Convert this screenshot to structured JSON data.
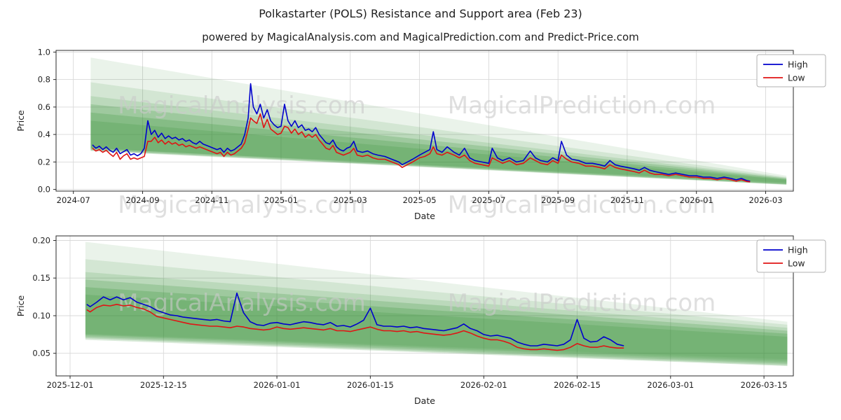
{
  "title": "Polkastarter (POLS) Resistance and Support area (Feb 23)",
  "subtitle": "powered by MagicalAnalysis.com and MagicalPrediction.com and Predict-Price.com",
  "watermarks": [
    "MagicalAnalysis.com",
    "MagicalPrediction.com"
  ],
  "colors": {
    "high": "#0000cd",
    "low": "#e01414",
    "band": "#2e8b2e",
    "grid": "#d9d9d9",
    "axis": "#2b2b2b",
    "text": "#1f1f1f",
    "watermark": "#c9c9c9",
    "legend_border": "#b0b0b0"
  },
  "chart_data": [
    {
      "type": "line",
      "panel": "top",
      "xlabel": "Date",
      "ylabel": "Price",
      "x_unit": "months since 2024-07-01",
      "grid": true,
      "legend_position": "upper right",
      "xlim": [
        -0.5,
        20.8
      ],
      "ylim": [
        -0.012,
        1.012
      ],
      "xticks": [
        0,
        2,
        4,
        6,
        8,
        10,
        12,
        14,
        16,
        18,
        20
      ],
      "xtick_labels": [
        "2024-07",
        "2024-09",
        "2024-11",
        "2025-01",
        "2025-03",
        "2025-05",
        "2025-07",
        "2025-09",
        "2025-11",
        "2026-01",
        "2026-03"
      ],
      "yticks": [
        0.0,
        0.2,
        0.4,
        0.6,
        0.8,
        1.0
      ],
      "ytick_labels": [
        "0.0",
        "0.2",
        "0.4",
        "0.6",
        "0.8",
        "1.0"
      ],
      "x": [
        0.55,
        0.65,
        0.75,
        0.85,
        0.95,
        1.05,
        1.15,
        1.25,
        1.35,
        1.45,
        1.55,
        1.65,
        1.75,
        1.85,
        1.95,
        2.05,
        2.15,
        2.25,
        2.35,
        2.45,
        2.55,
        2.65,
        2.75,
        2.85,
        2.95,
        3.05,
        3.15,
        3.25,
        3.35,
        3.45,
        3.55,
        3.65,
        3.75,
        3.85,
        3.95,
        4.05,
        4.15,
        4.25,
        4.35,
        4.45,
        4.55,
        4.65,
        4.75,
        4.85,
        4.95,
        5.05,
        5.12,
        5.2,
        5.3,
        5.4,
        5.5,
        5.6,
        5.7,
        5.8,
        5.9,
        6.0,
        6.1,
        6.2,
        6.3,
        6.4,
        6.5,
        6.6,
        6.7,
        6.8,
        6.9,
        7.0,
        7.1,
        7.2,
        7.3,
        7.4,
        7.5,
        7.6,
        7.7,
        7.8,
        7.9,
        8.0,
        8.1,
        8.2,
        8.35,
        8.5,
        8.65,
        8.8,
        9.0,
        9.2,
        9.4,
        9.5,
        9.65,
        9.8,
        10.0,
        10.15,
        10.3,
        10.4,
        10.5,
        10.65,
        10.8,
        11.0,
        11.15,
        11.3,
        11.45,
        11.6,
        11.8,
        12.0,
        12.1,
        12.25,
        12.4,
        12.6,
        12.8,
        13.0,
        13.2,
        13.35,
        13.5,
        13.7,
        13.85,
        14.0,
        14.1,
        14.25,
        14.4,
        14.6,
        14.8,
        15.0,
        15.2,
        15.35,
        15.5,
        15.65,
        15.8,
        16.0,
        16.2,
        16.35,
        16.5,
        16.65,
        16.8,
        17.0,
        17.2,
        17.4,
        17.6,
        17.8,
        18.0,
        18.2,
        18.4,
        18.6,
        18.8,
        19.0,
        19.15,
        19.3,
        19.45,
        19.55
      ],
      "series": [
        {
          "name": "High",
          "color": "high",
          "values": [
            0.325,
            0.3,
            0.315,
            0.29,
            0.31,
            0.285,
            0.27,
            0.3,
            0.26,
            0.275,
            0.29,
            0.25,
            0.26,
            0.245,
            0.26,
            0.3,
            0.5,
            0.4,
            0.43,
            0.38,
            0.41,
            0.37,
            0.39,
            0.37,
            0.38,
            0.36,
            0.37,
            0.35,
            0.36,
            0.34,
            0.33,
            0.35,
            0.33,
            0.32,
            0.31,
            0.3,
            0.29,
            0.3,
            0.27,
            0.3,
            0.28,
            0.29,
            0.31,
            0.33,
            0.4,
            0.52,
            0.77,
            0.6,
            0.55,
            0.62,
            0.52,
            0.58,
            0.5,
            0.47,
            0.45,
            0.46,
            0.62,
            0.5,
            0.46,
            0.5,
            0.45,
            0.47,
            0.43,
            0.44,
            0.42,
            0.45,
            0.4,
            0.37,
            0.34,
            0.33,
            0.36,
            0.31,
            0.29,
            0.28,
            0.3,
            0.31,
            0.35,
            0.28,
            0.27,
            0.28,
            0.26,
            0.25,
            0.24,
            0.22,
            0.2,
            0.18,
            0.2,
            0.22,
            0.25,
            0.27,
            0.29,
            0.42,
            0.29,
            0.27,
            0.31,
            0.27,
            0.25,
            0.3,
            0.23,
            0.21,
            0.2,
            0.19,
            0.3,
            0.23,
            0.21,
            0.23,
            0.2,
            0.21,
            0.28,
            0.23,
            0.21,
            0.2,
            0.23,
            0.21,
            0.35,
            0.25,
            0.22,
            0.21,
            0.19,
            0.19,
            0.18,
            0.17,
            0.21,
            0.18,
            0.17,
            0.16,
            0.15,
            0.14,
            0.16,
            0.14,
            0.13,
            0.12,
            0.11,
            0.12,
            0.11,
            0.1,
            0.1,
            0.09,
            0.09,
            0.08,
            0.09,
            0.08,
            0.07,
            0.08,
            0.065,
            0.06
          ]
        },
        {
          "name": "Low",
          "color": "low",
          "values": [
            0.3,
            0.28,
            0.29,
            0.27,
            0.285,
            0.26,
            0.24,
            0.27,
            0.22,
            0.245,
            0.26,
            0.22,
            0.23,
            0.22,
            0.23,
            0.24,
            0.35,
            0.35,
            0.38,
            0.34,
            0.36,
            0.33,
            0.35,
            0.33,
            0.34,
            0.32,
            0.33,
            0.31,
            0.32,
            0.31,
            0.3,
            0.31,
            0.3,
            0.29,
            0.28,
            0.27,
            0.26,
            0.27,
            0.24,
            0.27,
            0.25,
            0.26,
            0.28,
            0.3,
            0.34,
            0.44,
            0.52,
            0.5,
            0.48,
            0.55,
            0.45,
            0.51,
            0.44,
            0.42,
            0.4,
            0.41,
            0.46,
            0.45,
            0.41,
            0.44,
            0.4,
            0.42,
            0.38,
            0.4,
            0.38,
            0.4,
            0.36,
            0.33,
            0.3,
            0.29,
            0.32,
            0.27,
            0.26,
            0.25,
            0.26,
            0.27,
            0.3,
            0.25,
            0.24,
            0.25,
            0.23,
            0.22,
            0.22,
            0.2,
            0.18,
            0.16,
            0.18,
            0.2,
            0.23,
            0.24,
            0.26,
            0.31,
            0.26,
            0.25,
            0.27,
            0.25,
            0.23,
            0.25,
            0.21,
            0.19,
            0.18,
            0.17,
            0.23,
            0.21,
            0.19,
            0.21,
            0.18,
            0.19,
            0.23,
            0.21,
            0.19,
            0.18,
            0.21,
            0.19,
            0.25,
            0.22,
            0.2,
            0.19,
            0.17,
            0.17,
            0.16,
            0.15,
            0.18,
            0.16,
            0.15,
            0.14,
            0.13,
            0.12,
            0.14,
            0.12,
            0.11,
            0.11,
            0.1,
            0.11,
            0.1,
            0.09,
            0.09,
            0.08,
            0.08,
            0.07,
            0.08,
            0.07,
            0.06,
            0.07,
            0.058,
            0.055
          ]
        }
      ],
      "bands": [
        {
          "x0": 0.5,
          "top0": 0.96,
          "bot0": 0.3,
          "x1": 20.6,
          "top1": 0.1,
          "bot1": 0.05,
          "opacity": 0.1
        },
        {
          "x0": 0.5,
          "top0": 0.78,
          "bot0": 0.3,
          "x1": 20.6,
          "top1": 0.09,
          "bot1": 0.045,
          "opacity": 0.12
        },
        {
          "x0": 0.5,
          "top0": 0.68,
          "bot0": 0.3,
          "x1": 20.6,
          "top1": 0.085,
          "bot1": 0.04,
          "opacity": 0.14
        },
        {
          "x0": 0.5,
          "top0": 0.62,
          "bot0": 0.29,
          "x1": 20.6,
          "top1": 0.08,
          "bot1": 0.038,
          "opacity": 0.2
        },
        {
          "x0": 0.5,
          "top0": 0.56,
          "bot0": 0.285,
          "x1": 20.6,
          "top1": 0.075,
          "bot1": 0.036,
          "opacity": 0.22
        },
        {
          "x0": 0.5,
          "top0": 0.5,
          "bot0": 0.28,
          "x1": 20.6,
          "top1": 0.07,
          "bot1": 0.034,
          "opacity": 0.18
        }
      ]
    },
    {
      "type": "line",
      "panel": "bottom",
      "xlabel": "Date",
      "ylabel": "Price",
      "x_unit": "days since 2025-12-01",
      "grid": true,
      "legend_position": "upper right",
      "xlim": [
        -2.1,
        108.4
      ],
      "ylim": [
        0.02,
        0.206
      ],
      "xticks": [
        0,
        14,
        31,
        45,
        62,
        76,
        90,
        104
      ],
      "xtick_labels": [
        "2025-12-01",
        "2025-12-15",
        "2026-01-01",
        "2026-01-15",
        "2026-02-01",
        "2026-02-15",
        "2026-03-01",
        "2026-03-15"
      ],
      "yticks": [
        0.05,
        0.1,
        0.15,
        0.2
      ],
      "ytick_labels": [
        "0.05",
        "0.10",
        "0.15",
        "0.20"
      ],
      "x": [
        2.5,
        3,
        4,
        5,
        6,
        7,
        8,
        9,
        10,
        11,
        12,
        13,
        14,
        15,
        16,
        17,
        18,
        19,
        20,
        21,
        22,
        23,
        24,
        25,
        26,
        27,
        28,
        29,
        30,
        31,
        32,
        33,
        34,
        35,
        36,
        37,
        38,
        39,
        40,
        41,
        42,
        43,
        44,
        45,
        46,
        47,
        48,
        49,
        50,
        51,
        52,
        53,
        54,
        55,
        56,
        57,
        58,
        59,
        60,
        61,
        62,
        63,
        64,
        65,
        66,
        67,
        68,
        69,
        70,
        71,
        72,
        73,
        74,
        75,
        76,
        77,
        78,
        79,
        80,
        81,
        82,
        83
      ],
      "series": [
        {
          "name": "High",
          "color": "high",
          "values": [
            0.115,
            0.112,
            0.118,
            0.125,
            0.121,
            0.125,
            0.121,
            0.124,
            0.118,
            0.115,
            0.112,
            0.107,
            0.104,
            0.101,
            0.1,
            0.098,
            0.097,
            0.096,
            0.095,
            0.094,
            0.095,
            0.093,
            0.092,
            0.13,
            0.104,
            0.092,
            0.088,
            0.087,
            0.09,
            0.091,
            0.089,
            0.088,
            0.09,
            0.092,
            0.091,
            0.089,
            0.088,
            0.091,
            0.086,
            0.087,
            0.085,
            0.089,
            0.094,
            0.11,
            0.088,
            0.086,
            0.086,
            0.085,
            0.086,
            0.084,
            0.085,
            0.083,
            0.082,
            0.081,
            0.08,
            0.082,
            0.084,
            0.089,
            0.083,
            0.08,
            0.075,
            0.073,
            0.074,
            0.072,
            0.07,
            0.065,
            0.062,
            0.06,
            0.06,
            0.062,
            0.061,
            0.06,
            0.062,
            0.068,
            0.095,
            0.07,
            0.065,
            0.066,
            0.072,
            0.068,
            0.062,
            0.06
          ]
        },
        {
          "name": "Low",
          "color": "low",
          "values": [
            0.108,
            0.105,
            0.111,
            0.114,
            0.113,
            0.115,
            0.113,
            0.114,
            0.111,
            0.109,
            0.105,
            0.099,
            0.097,
            0.095,
            0.093,
            0.091,
            0.089,
            0.088,
            0.087,
            0.086,
            0.086,
            0.085,
            0.084,
            0.086,
            0.085,
            0.083,
            0.082,
            0.081,
            0.082,
            0.085,
            0.083,
            0.082,
            0.083,
            0.084,
            0.083,
            0.082,
            0.081,
            0.083,
            0.08,
            0.08,
            0.079,
            0.081,
            0.083,
            0.085,
            0.082,
            0.08,
            0.08,
            0.079,
            0.08,
            0.078,
            0.079,
            0.077,
            0.076,
            0.075,
            0.074,
            0.075,
            0.077,
            0.08,
            0.077,
            0.073,
            0.07,
            0.068,
            0.068,
            0.066,
            0.063,
            0.058,
            0.056,
            0.055,
            0.055,
            0.056,
            0.055,
            0.054,
            0.055,
            0.058,
            0.063,
            0.06,
            0.058,
            0.058,
            0.06,
            0.058,
            0.057,
            0.057
          ]
        }
      ],
      "bands": [
        {
          "x0": 2.3,
          "top0": 0.198,
          "bot0": 0.076,
          "x1": 107.5,
          "top1": 0.092,
          "bot1": 0.042,
          "opacity": 0.1
        },
        {
          "x0": 2.3,
          "top0": 0.175,
          "bot0": 0.075,
          "x1": 107.5,
          "top1": 0.088,
          "bot1": 0.04,
          "opacity": 0.12
        },
        {
          "x0": 2.3,
          "top0": 0.158,
          "bot0": 0.074,
          "x1": 107.5,
          "top1": 0.084,
          "bot1": 0.038,
          "opacity": 0.14
        },
        {
          "x0": 2.3,
          "top0": 0.148,
          "bot0": 0.072,
          "x1": 107.5,
          "top1": 0.08,
          "bot1": 0.036,
          "opacity": 0.2
        },
        {
          "x0": 2.3,
          "top0": 0.138,
          "bot0": 0.07,
          "x1": 107.5,
          "top1": 0.076,
          "bot1": 0.034,
          "opacity": 0.22
        },
        {
          "x0": 2.3,
          "top0": 0.128,
          "bot0": 0.068,
          "x1": 107.5,
          "top1": 0.072,
          "bot1": 0.033,
          "opacity": 0.18
        }
      ]
    }
  ]
}
